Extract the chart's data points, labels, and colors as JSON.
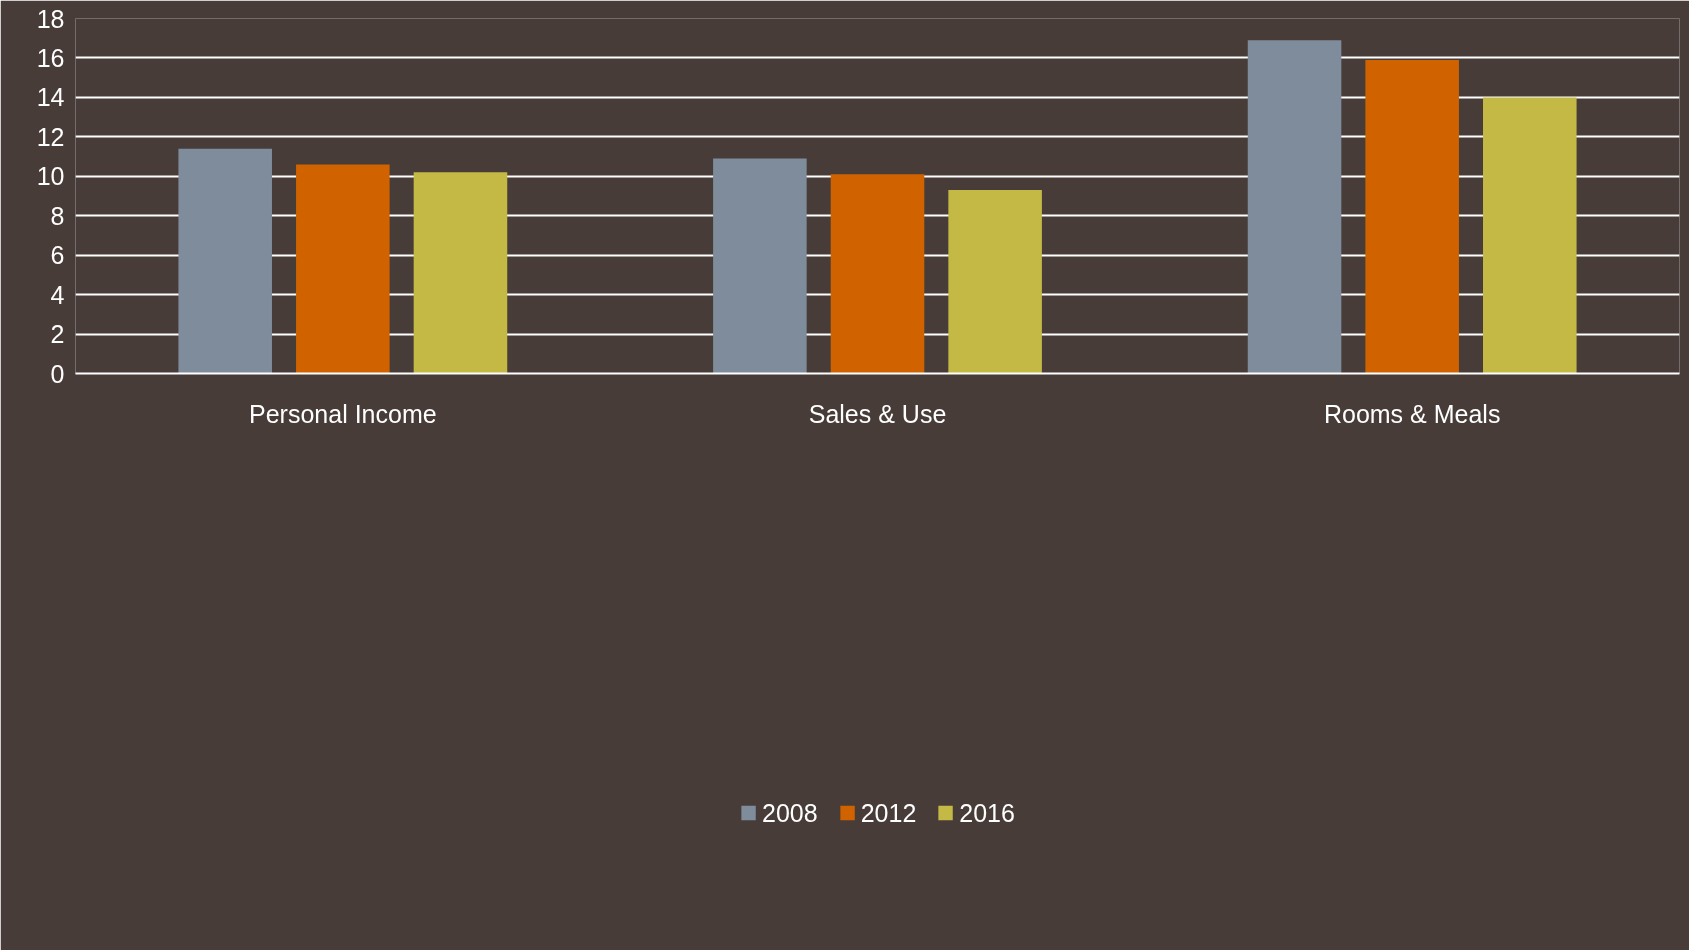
{
  "chart_data": {
    "type": "bar",
    "categories": [
      "Personal Income",
      "Sales & Use",
      "Rooms & Meals"
    ],
    "series": [
      {
        "name": "2008",
        "color": "#7f8c9c",
        "values": [
          11.4,
          10.9,
          16.9
        ]
      },
      {
        "name": "2012",
        "color": "#d06300",
        "values": [
          10.6,
          10.1,
          15.9
        ]
      },
      {
        "name": "2016",
        "color": "#c4b945",
        "values": [
          10.2,
          9.3,
          14.0
        ]
      }
    ],
    "ylim": [
      0,
      18
    ],
    "yticks": [
      0,
      2,
      4,
      6,
      8,
      10,
      12,
      14,
      16,
      18
    ],
    "grid": "y",
    "legend": "bottom"
  }
}
